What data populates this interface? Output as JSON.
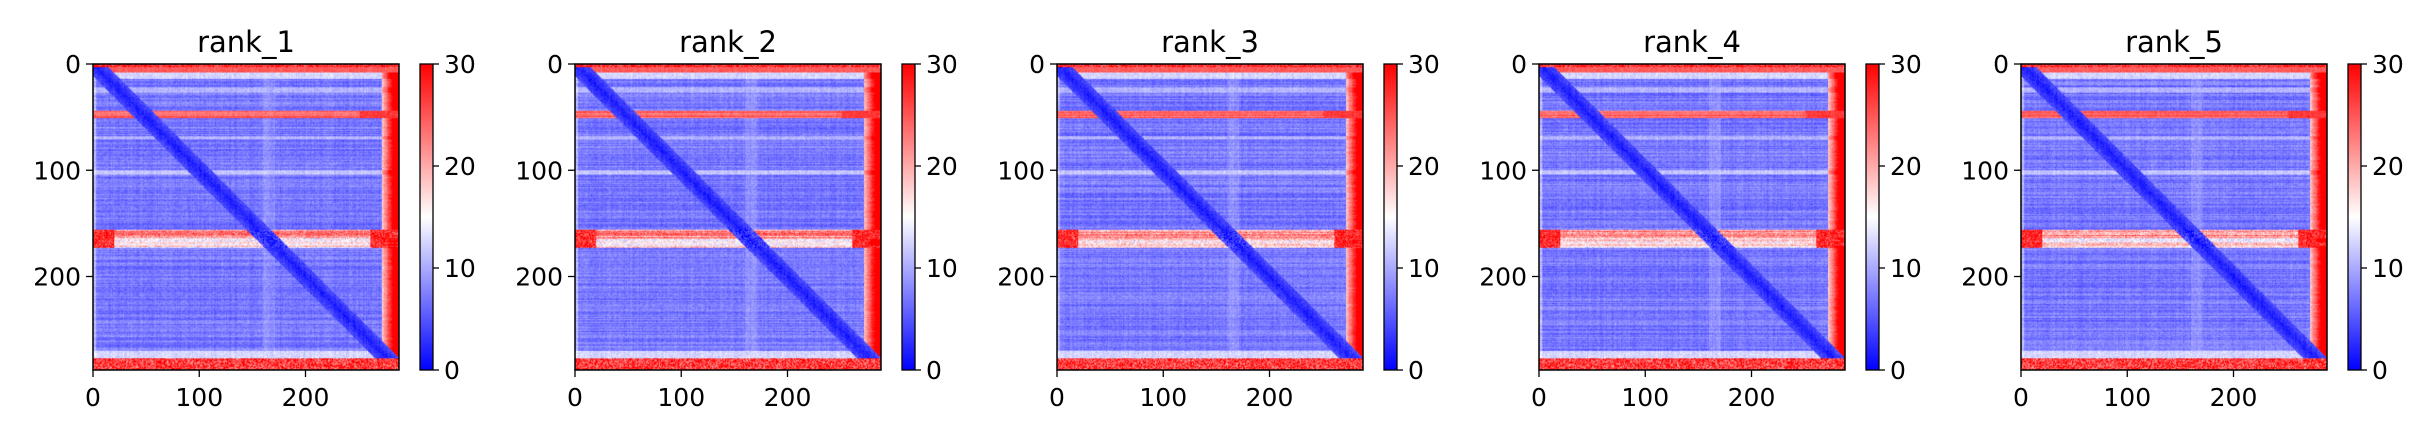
{
  "chart_data": [
    {
      "type": "heatmap",
      "title": "rank_1",
      "xlabel": "",
      "ylabel": "",
      "x_ticks": [
        0,
        100,
        200
      ],
      "y_ticks": [
        0,
        100,
        200
      ],
      "xlim": [
        0,
        288
      ],
      "ylim": [
        288,
        0
      ],
      "colorbar": {
        "ticks": [
          0,
          10,
          20,
          30
        ],
        "range": [
          0,
          30
        ],
        "colormap": "bwr"
      },
      "description": "Predicted aligned error matrix; low error (blue) along diagonal and most of the matrix, high error (red) bands near residues 0-15, ~45-50, ~160-175 and 270-288."
    },
    {
      "type": "heatmap",
      "title": "rank_2",
      "xlabel": "",
      "ylabel": "",
      "x_ticks": [
        0,
        100,
        200
      ],
      "y_ticks": [
        0,
        100,
        200
      ],
      "xlim": [
        0,
        288
      ],
      "ylim": [
        288,
        0
      ],
      "colorbar": {
        "ticks": [
          0,
          10,
          20,
          30
        ],
        "range": [
          0,
          30
        ],
        "colormap": "bwr"
      }
    },
    {
      "type": "heatmap",
      "title": "rank_3",
      "xlabel": "",
      "ylabel": "",
      "x_ticks": [
        0,
        100,
        200
      ],
      "y_ticks": [
        0,
        100,
        200
      ],
      "xlim": [
        0,
        288
      ],
      "ylim": [
        288,
        0
      ],
      "colorbar": {
        "ticks": [
          0,
          10,
          20,
          30
        ],
        "range": [
          0,
          30
        ],
        "colormap": "bwr"
      }
    },
    {
      "type": "heatmap",
      "title": "rank_4",
      "xlabel": "",
      "ylabel": "",
      "x_ticks": [
        0,
        100,
        200
      ],
      "y_ticks": [
        0,
        100,
        200
      ],
      "xlim": [
        0,
        288
      ],
      "ylim": [
        288,
        0
      ],
      "colorbar": {
        "ticks": [
          0,
          10,
          20,
          30
        ],
        "range": [
          0,
          30
        ],
        "colormap": "bwr"
      }
    },
    {
      "type": "heatmap",
      "title": "rank_5",
      "xlabel": "",
      "ylabel": "",
      "x_ticks": [
        0,
        100,
        200
      ],
      "y_ticks": [
        0,
        100,
        200
      ],
      "xlim": [
        0,
        288
      ],
      "ylim": [
        288,
        0
      ],
      "colorbar": {
        "ticks": [
          0,
          10,
          20,
          30
        ],
        "range": [
          0,
          30
        ],
        "colormap": "bwr"
      }
    }
  ],
  "colors": {
    "low": "#0000ff",
    "mid": "#ffffff",
    "high": "#ff0000"
  }
}
